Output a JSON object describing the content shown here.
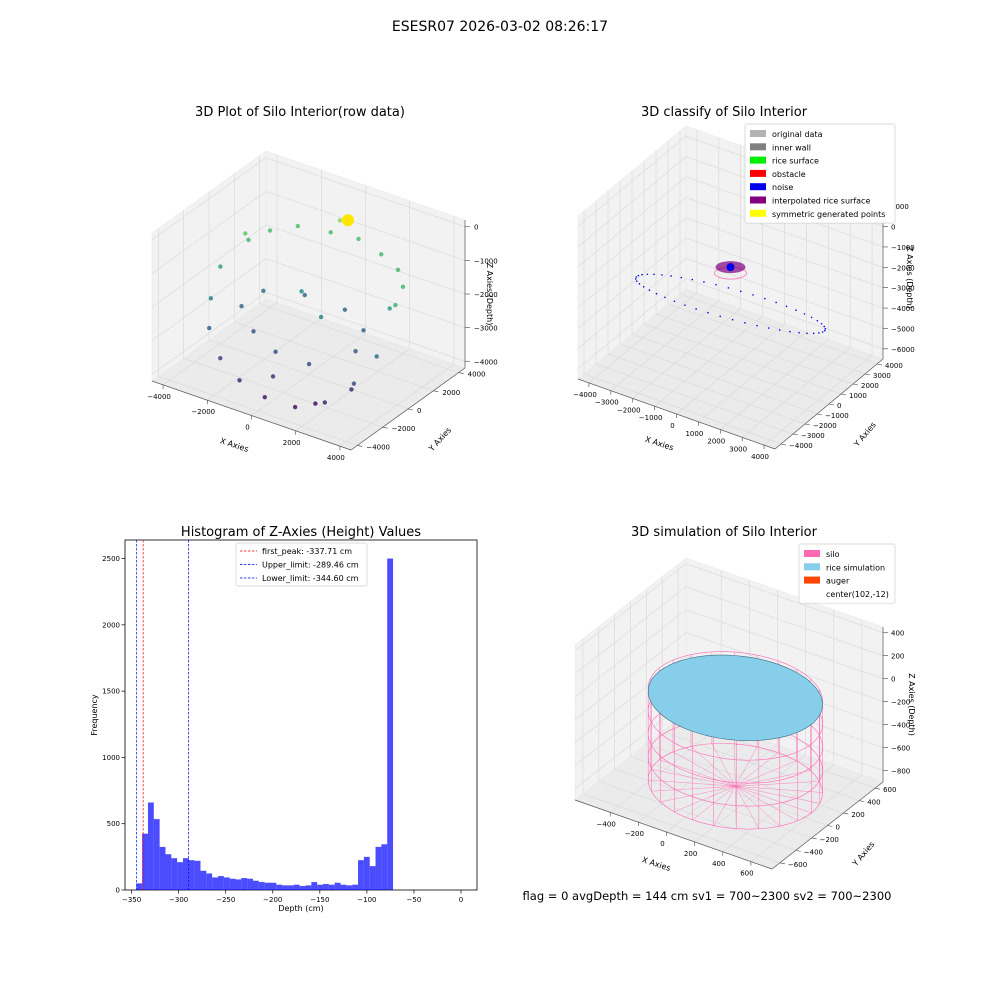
{
  "figure": {
    "suptitle": "ESESR07 2026-03-02 08:26:17",
    "footer": "flag = 0     avgDepth = 144 cm  sv1 = 700~2300  sv2 = 700~2300"
  },
  "chart_data": [
    {
      "type": "scatter",
      "title": "3D Plot of Silo Interior(row data)",
      "xlabel": "X Axies",
      "ylabel": "Y Axies",
      "zlabel": "Z Axies (Depth)",
      "xticks": [
        -4000,
        -2000,
        0,
        2000,
        4000
      ],
      "yticks": [
        -4000,
        -2000,
        0,
        2000,
        4000
      ],
      "zticks": [
        0,
        -1000,
        -2000,
        -3000,
        -4000
      ],
      "xlim": [
        -4500,
        4500
      ],
      "ylim": [
        -4500,
        4500
      ],
      "zlim": [
        -4200,
        200
      ],
      "colormap": "viridis",
      "points": [
        {
          "x": -3400,
          "y": 1200,
          "z": -1300
        },
        {
          "x": -3000,
          "y": 2200,
          "z": -1200
        },
        {
          "x": -2200,
          "y": 3000,
          "z": -1100
        },
        {
          "x": -1000,
          "y": 3500,
          "z": -1150
        },
        {
          "x": 200,
          "y": 3600,
          "z": -1100
        },
        {
          "x": 1400,
          "y": 3300,
          "z": -1200
        },
        {
          "x": 2500,
          "y": 2700,
          "z": -1250
        },
        {
          "x": 3300,
          "y": 1700,
          "z": -1300
        },
        {
          "x": 3700,
          "y": 400,
          "z": -1400
        },
        {
          "x": -3700,
          "y": -500,
          "z": -1700
        },
        {
          "x": -3500,
          "y": -1600,
          "z": -2300
        },
        {
          "x": -3000,
          "y": -2600,
          "z": -2800
        },
        {
          "x": -2100,
          "y": -3300,
          "z": -3300
        },
        {
          "x": -1000,
          "y": -3700,
          "z": -3600
        },
        {
          "x": 200,
          "y": -3800,
          "z": -3800
        },
        {
          "x": 1400,
          "y": -3500,
          "z": -3900
        },
        {
          "x": 2400,
          "y": -2900,
          "z": -3700
        },
        {
          "x": 3200,
          "y": -2000,
          "z": -3200
        },
        {
          "x": 3600,
          "y": -900,
          "z": -2600
        },
        {
          "x": -2500,
          "y": 800,
          "z": -2500
        },
        {
          "x": -1200,
          "y": 1800,
          "z": -2600
        },
        {
          "x": 500,
          "y": 2000,
          "z": -2700
        },
        {
          "x": 1800,
          "y": 1200,
          "z": -2800
        },
        {
          "x": 2300,
          "y": -300,
          "z": -2900
        },
        {
          "x": -1800,
          "y": -1200,
          "z": -3000
        },
        {
          "x": -400,
          "y": -1900,
          "z": -3100
        },
        {
          "x": 1000,
          "y": -1700,
          "z": -3200
        },
        {
          "x": -600,
          "y": 500,
          "z": -2000
        },
        {
          "x": 800,
          "y": -400,
          "z": -2200
        },
        {
          "x": -2800,
          "y": -400,
          "z": -2700
        },
        {
          "x": 2800,
          "y": -1500,
          "z": -3600
        },
        {
          "x": 1800,
          "y": -2600,
          "z": -3950
        },
        {
          "x": -300,
          "y": 3000,
          "z": -500
        },
        {
          "x": -3200,
          "y": 600,
          "z": -900
        },
        {
          "x": 3100,
          "y": 1000,
          "z": -1800
        },
        {
          "x": 0,
          "y": -2800,
          "z": -3500
        }
      ],
      "cluster": {
        "x": 300,
        "y": 2600,
        "z": -250,
        "color": "#ffe600"
      }
    },
    {
      "type": "scatter",
      "title": "3D classify of Silo Interior",
      "xlabel": "X Axies",
      "ylabel": "Y Axies",
      "zlabel": "Z Axies (Depth)",
      "xticks": [
        -4000,
        -3000,
        -2000,
        -1000,
        0,
        1000,
        2000,
        3000,
        4000
      ],
      "yticks": [
        -4000,
        -3000,
        -2000,
        -1000,
        0,
        1000,
        2000,
        3000,
        4000
      ],
      "zticks": [
        1000,
        0,
        -1000,
        -2000,
        -3000,
        -4000,
        -5000,
        -6000
      ],
      "xlim": [
        -4500,
        4500
      ],
      "ylim": [
        -4500,
        4500
      ],
      "zlim": [
        -6500,
        1500
      ],
      "legend": [
        {
          "label": "original data",
          "color": "#b3b3b3"
        },
        {
          "label": "inner wall",
          "color": "#808080"
        },
        {
          "label": "rice surface",
          "color": "#00ee00"
        },
        {
          "label": "obstacle",
          "color": "#ff0000"
        },
        {
          "label": "noise",
          "color": "#0000ee"
        },
        {
          "label": "interpolated rice surface",
          "color": "#800080"
        },
        {
          "label": "symmetric generated points",
          "color": "#ffff00"
        }
      ],
      "legend_loc": "upper right",
      "noise_ring": {
        "radius": 3800,
        "z_top": -1500,
        "z_bottom": -5500
      },
      "rice_surface_center": {
        "x": 0,
        "y": 0,
        "z": -1500
      }
    },
    {
      "type": "histogram",
      "title": "Histogram of Z-Axies (Height) Values",
      "xlabel": "Depth (cm)",
      "ylabel": "Frequency",
      "xlim": [
        -357,
        17
      ],
      "ylim": [
        0,
        2640
      ],
      "xticks": [
        -350,
        -300,
        -250,
        -200,
        -150,
        -100,
        -50,
        0
      ],
      "yticks": [
        0,
        500,
        1000,
        1500,
        2000,
        2500
      ],
      "bar_color": "#0000ff",
      "bin_start": -345,
      "bin_width": 6.2,
      "counts": [
        50,
        425,
        660,
        535,
        325,
        270,
        240,
        210,
        240,
        225,
        220,
        145,
        125,
        95,
        105,
        95,
        85,
        80,
        90,
        85,
        70,
        60,
        55,
        55,
        40,
        35,
        35,
        40,
        30,
        35,
        60,
        40,
        45,
        40,
        55,
        40,
        35,
        40,
        225,
        250,
        180,
        325,
        345,
        2500
      ],
      "vlines": [
        {
          "label": "first_peak: -337.71 cm",
          "x": -337.71,
          "color": "#ff0000"
        },
        {
          "label": "Upper_limit: -289.46 cm",
          "x": -289.46,
          "color": "#0000ff"
        },
        {
          "label": "Lower_limit: -344.60 cm",
          "x": -344.6,
          "color": "#0000ff"
        }
      ],
      "legend_loc": "upper center"
    },
    {
      "type": "surface",
      "title": "3D simulation of Silo Interior",
      "xlabel": "X Axies",
      "ylabel": "Y Axies",
      "zlabel": "Z Axies (Depth)",
      "xticks": [
        -400,
        -200,
        0,
        200,
        400,
        600
      ],
      "yticks": [
        -600,
        -400,
        -200,
        0,
        200,
        400,
        600
      ],
      "zticks": [
        400,
        200,
        0,
        -200,
        -400,
        -600,
        -800
      ],
      "xlim": [
        -650,
        750
      ],
      "ylim": [
        -700,
        700
      ],
      "zlim": [
        -900,
        450
      ],
      "legend": [
        {
          "label": "silo",
          "color": "#ff69b4"
        },
        {
          "label": "rice simulation",
          "color": "#87ceeb"
        },
        {
          "label": "auger",
          "color": "#ff4500"
        },
        {
          "label": "center(102,-12)",
          "color": ""
        }
      ],
      "legend_loc": "upper right",
      "silo": {
        "radius": 540,
        "z_top": -30,
        "z_bottom": -830
      },
      "rice_surface_z": -60
    }
  ]
}
